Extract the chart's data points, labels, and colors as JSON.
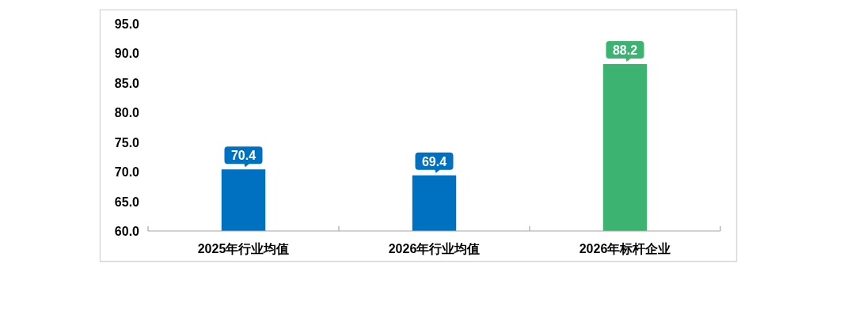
{
  "chart_data": {
    "type": "bar",
    "categories": [
      "2025年行业均值",
      "2026年行业均值",
      "2026年标杆企业"
    ],
    "values": [
      70.4,
      69.4,
      88.2
    ],
    "colors": [
      "#0070c0",
      "#0070c0",
      "#3cb371"
    ],
    "ylim": [
      60,
      95
    ],
    "yticks": [
      {
        "value": 60,
        "label": "60.0"
      },
      {
        "value": 65,
        "label": "65.0"
      },
      {
        "value": 70,
        "label": "70.0"
      },
      {
        "value": 75,
        "label": "75.0"
      },
      {
        "value": 80,
        "label": "80.0"
      },
      {
        "value": 85,
        "label": "85.0"
      },
      {
        "value": 90,
        "label": "90.0"
      },
      {
        "value": 95,
        "label": "95.0"
      }
    ],
    "data_labels": true
  }
}
